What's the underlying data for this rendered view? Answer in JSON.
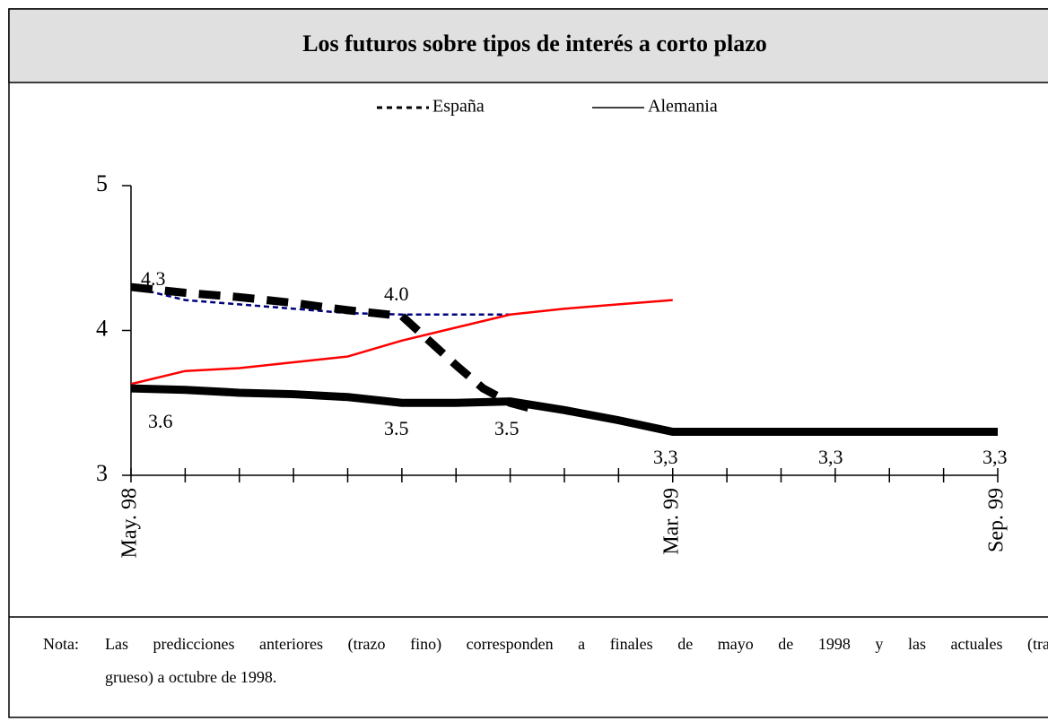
{
  "chart_data": {
    "type": "line",
    "title": "Los futuros sobre tipos de interés a corto plazo",
    "legend": [
      {
        "name": "España",
        "dashed": true
      },
      {
        "name": "Alemania",
        "dashed": false
      }
    ],
    "xlim": [
      0,
      16
    ],
    "xticks": [
      {
        "value": 0,
        "label": "May. 98"
      },
      {
        "value": 10,
        "label": "Mar. 99"
      },
      {
        "value": 16,
        "label": "Sep. 99"
      }
    ],
    "xticks_minor": [
      1,
      2,
      3,
      4,
      5,
      6,
      7,
      8,
      9,
      11,
      12,
      13,
      14,
      15
    ],
    "ylim": [
      3,
      5
    ],
    "yticks": [
      3,
      4,
      5
    ],
    "series": [
      {
        "color": "#000080",
        "dashed": true,
        "thick": false,
        "x": [
          0,
          1,
          2,
          3,
          4,
          5,
          6,
          7
        ],
        "values": [
          4.3,
          4.21,
          4.18,
          4.15,
          4.12,
          4.11,
          4.11,
          4.11
        ]
      },
      {
        "color": "#ff0000",
        "dashed": false,
        "thick": false,
        "x": [
          0,
          1,
          2,
          3,
          4,
          5,
          6,
          7,
          8,
          9,
          10
        ],
        "values": [
          3.63,
          3.72,
          3.74,
          3.78,
          3.82,
          3.93,
          4.02,
          4.11,
          4.15,
          4.18,
          4.21
        ]
      },
      {
        "color": "#000000",
        "dashed": false,
        "thick": true,
        "x": [
          0,
          1,
          2,
          3,
          4,
          5,
          6,
          7,
          8,
          9,
          10,
          11,
          12,
          13,
          14,
          15,
          16
        ],
        "values": [
          3.6,
          3.59,
          3.57,
          3.56,
          3.54,
          3.5,
          3.5,
          3.51,
          3.45,
          3.38,
          3.3,
          3.3,
          3.3,
          3.3,
          3.3,
          3.3,
          3.3
        ]
      },
      {
        "color": "#000000",
        "dashed": true,
        "thick": true,
        "x": [
          0,
          1,
          2,
          3,
          4,
          5,
          5.5,
          6,
          6.5,
          7,
          7.5
        ],
        "values": [
          4.3,
          4.26,
          4.23,
          4.19,
          4.14,
          4.1,
          3.93,
          3.76,
          3.6,
          3.5,
          3.45
        ]
      }
    ],
    "annotations": [
      "4.3",
      "4.0",
      "3.6",
      "3.5",
      "3.5",
      "3,3",
      "3,3",
      "3,3"
    ]
  },
  "note": {
    "label": "Nota:",
    "lines": [
      "Las predicciones anteriores (trazo fino) corresponden a finales de mayo de 1998 y las actuales (trazo",
      "grueso) a octubre de 1998."
    ]
  }
}
